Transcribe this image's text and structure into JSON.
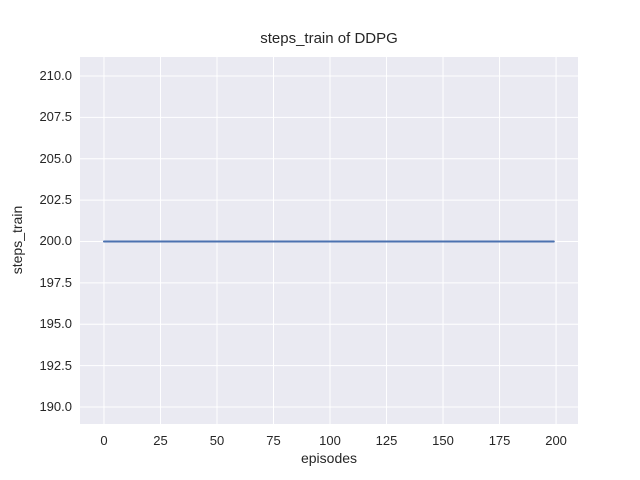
{
  "chart_data": {
    "type": "line",
    "title": "steps_train of DDPG",
    "xlabel": "episodes",
    "ylabel": "steps_train",
    "x_ticks": [
      0,
      25,
      50,
      75,
      100,
      125,
      150,
      175,
      200
    ],
    "y_ticks": [
      190.0,
      192.5,
      195.0,
      197.5,
      200.0,
      202.5,
      205.0,
      207.5,
      210.0
    ],
    "y_tick_labels": [
      "190.0",
      "192.5",
      "195.0",
      "197.5",
      "200.0",
      "202.5",
      "205.0",
      "207.5",
      "210.0"
    ],
    "x_tick_labels": [
      "0",
      "25",
      "50",
      "75",
      "100",
      "125",
      "150",
      "175",
      "200"
    ],
    "xlim": [
      -10.6,
      209.7
    ],
    "ylim": [
      188.97,
      211.15
    ],
    "grid": true,
    "legend_position": "none",
    "series": [
      {
        "name": "steps_train",
        "color": "#4c72b0",
        "x": [
          0,
          199
        ],
        "y": [
          200,
          200
        ]
      }
    ]
  },
  "colors": {
    "figure_bg": "#ffffff",
    "plot_bg": "#eaeaf2",
    "grid": "#ffffff",
    "text": "#262626",
    "line": "#4c72b0"
  }
}
